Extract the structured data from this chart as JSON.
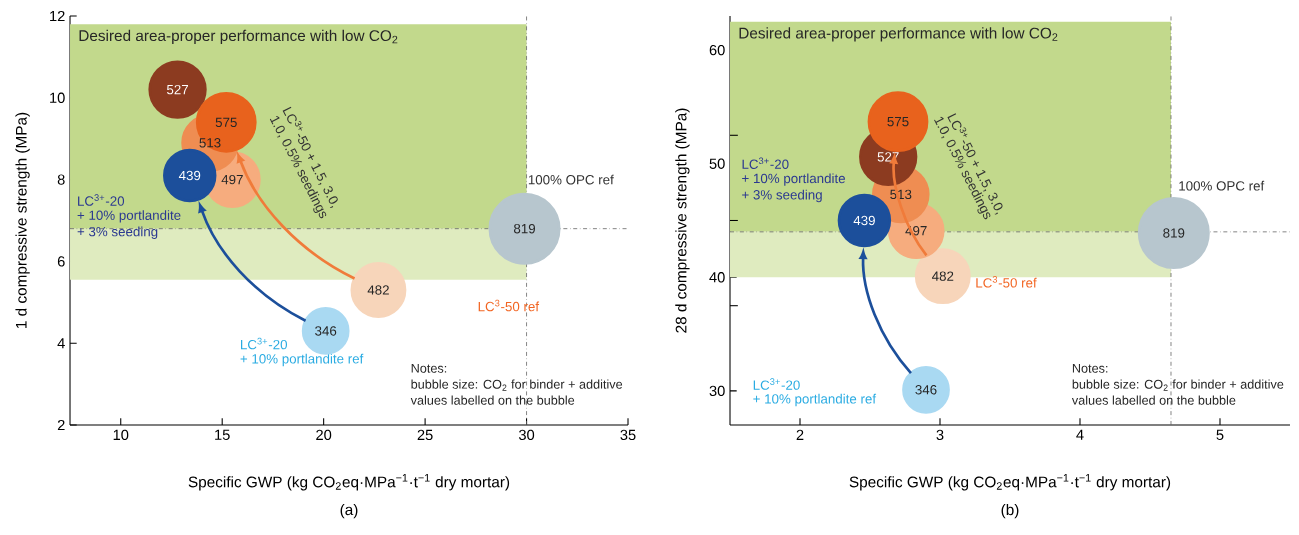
{
  "chart_data": [
    {
      "type": "bubble",
      "title": "(a)",
      "xlabel": "Specific GWP (kg CO$_{2}$eq·MPa$^{−1}$·t$^{−1}$ dry mortar)",
      "ylabel": "1 d compressive strength (MPa)",
      "x": [
        29.9,
        22.7,
        20.1,
        15.5,
        14.4,
        12.8,
        15.2,
        13.4
      ],
      "values": [
        6.8,
        5.3,
        4.3,
        8.0,
        8.9,
        10.2,
        9.4,
        8.1
      ],
      "sizes": [
        819,
        482,
        346,
        497,
        513,
        527,
        575,
        439
      ],
      "value_labels": [
        "819",
        "482",
        "346",
        "497",
        "513",
        "527",
        "575",
        "439"
      ],
      "colors": [
        "#b7c6ce",
        "#f7d5ba",
        "#a9d9f2",
        "#f6ac7e",
        "#ef8d52",
        "#8c3b20",
        "#e8621d",
        "#1c4f9b"
      ],
      "marker": "circle",
      "xlim": [
        7.5,
        35
      ],
      "xticks": [
        10,
        15,
        20,
        25,
        30,
        35
      ],
      "ylim": [
        2,
        12
      ],
      "yticks": [
        2,
        4,
        6,
        8,
        10,
        12
      ],
      "bands": [
        {
          "axis": "y",
          "from": 6.8,
          "to": 11.8,
          "label": "Desired area-proper performance with low CO$_{2}$",
          "color": "#c2d98c"
        },
        {
          "axis": "y",
          "from": 5.55,
          "to": 6.8,
          "color": "#dfebbf"
        }
      ],
      "ref_lines": [
        {
          "axis": "y",
          "value": 6.8,
          "color": "#666666"
        },
        {
          "axis": "x",
          "value": 30,
          "color": "#666666"
        }
      ],
      "annotations": [
        "LC$^{3+}$-20",
        "+ 10% portlandite",
        "+ 3% seeding",
        "LC$^{3+}$-20",
        "+ 10% portlandite ref",
        "LC$^{3}$-50 ref",
        "100% OPC ref",
        "LC$^{3+}$-50 + 1.5, 3.0,",
        "1.0, 0.5% seedings",
        "Notes:",
        "bubble size: CO$_{2}$ for binder + additive",
        "values labelled on the bubble"
      ]
    },
    {
      "type": "bubble",
      "title": "(b)",
      "xlabel": "Specific GWP (kg CO$_{2}$eq·MPa$^{−1}$·t$^{−1}$ dry mortar)",
      "ylabel": "28 d compressive strength (MPa)",
      "x": [
        4.67,
        3.02,
        2.9,
        2.83,
        2.72,
        2.63,
        2.7,
        2.46
      ],
      "values": [
        43.9,
        40.1,
        30.1,
        44.1,
        47.3,
        50.6,
        53.7,
        45.0
      ],
      "sizes": [
        819,
        482,
        346,
        497,
        513,
        527,
        575,
        439
      ],
      "value_labels": [
        "819",
        "482",
        "346",
        "497",
        "513",
        "527",
        "575",
        "439"
      ],
      "colors": [
        "#b7c6ce",
        "#f7d5ba",
        "#a9d9f2",
        "#f6ac7e",
        "#ef8d52",
        "#8c3b20",
        "#e8621d",
        "#1c4f9b"
      ],
      "marker": "circle",
      "xlim": [
        1.5,
        5.5
      ],
      "xticks": [
        2,
        3,
        4,
        5
      ],
      "ylim": [
        27,
        63
      ],
      "yticks": [
        30,
        {
          "value": 37.5,
          "label": null
        },
        40,
        {
          "value": 45,
          "label": null
        },
        50,
        {
          "value": 52.5,
          "label": null
        },
        60
      ],
      "bands": [
        {
          "axis": "y",
          "from": 44,
          "to": 62.5,
          "label": "Desired area-proper performance with low CO$_{2}$",
          "color": "#c2d98c"
        },
        {
          "axis": "y",
          "from": 40,
          "to": 44,
          "color": "#dfebbf"
        }
      ],
      "ref_lines": [
        {
          "axis": "y",
          "value": 44,
          "color": "#666666"
        },
        {
          "axis": "x",
          "value": 4.65,
          "color": "#666666"
        }
      ],
      "annotations": [
        "LC$^{3+}$-20",
        "+ 10% portlandite",
        "+ 3% seeding",
        "LC$^{3+}$-20",
        "+ 10% portlandite ref",
        "LC$^{3}$-50 ref",
        "100% OPC ref",
        "LC$^{3+}$-50 + 1.5, 3.0,",
        "1.0, 0.5% seedings",
        "Notes:",
        "bubble size: CO$_{2}$ for binder + additive",
        "values labelled on the bubble"
      ]
    }
  ]
}
